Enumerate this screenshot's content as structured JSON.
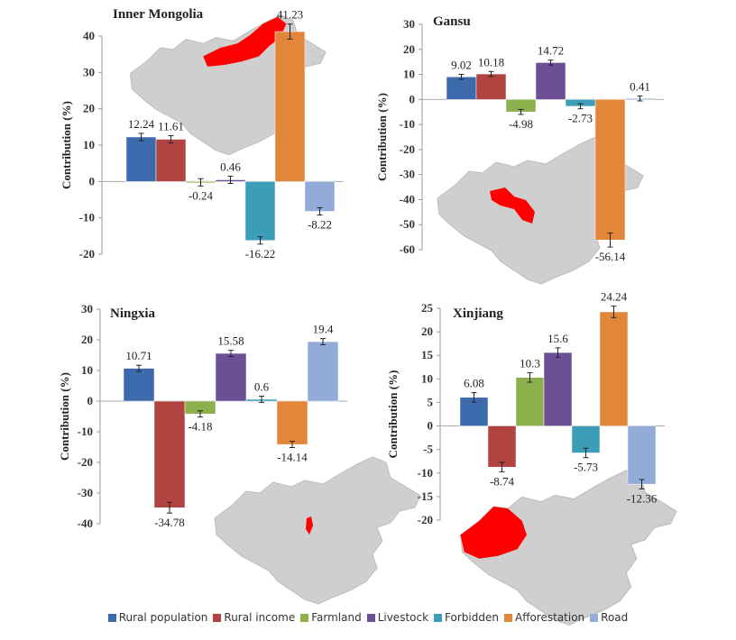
{
  "chart_data": [
    {
      "type": "bar",
      "title": "Inner Mongolia",
      "ylabel": "Contribution (%)",
      "ylim": [
        -20,
        45
      ],
      "yticks": [
        -20,
        -10,
        0,
        10,
        20,
        30,
        40
      ],
      "categories": [
        "Rural population",
        "Rural income",
        "Farmland",
        "Livestock",
        "Forbidden",
        "Afforestation",
        "Road"
      ],
      "values": [
        12.24,
        11.61,
        -0.24,
        0.46,
        -16.22,
        41.23,
        -8.22
      ],
      "labels": [
        "12.24",
        "11.61",
        "-0.24",
        "0.46",
        "-16.22",
        "41.23",
        "-8.22"
      ]
    },
    {
      "type": "bar",
      "title": "Gansu",
      "ylabel": "Contribution (%)",
      "ylim": [
        -60,
        30
      ],
      "yticks": [
        -60,
        -50,
        -40,
        -30,
        -20,
        -10,
        0,
        10,
        20,
        30
      ],
      "categories": [
        "Rural population",
        "Rural income",
        "Farmland",
        "Livestock",
        "Forbidden",
        "Afforestation",
        "Road"
      ],
      "values": [
        9.02,
        10.18,
        -4.98,
        14.72,
        -2.73,
        -56.14,
        0.41
      ],
      "labels": [
        "9.02",
        "10.18",
        "-4.98",
        "14.72",
        "-2.73",
        "-56.14",
        "0.41"
      ]
    },
    {
      "type": "bar",
      "title": "Ningxia",
      "ylabel": "Contribution (%)",
      "ylim": [
        -40,
        30
      ],
      "yticks": [
        -40,
        -30,
        -20,
        -10,
        0,
        10,
        20,
        30
      ],
      "categories": [
        "Rural population",
        "Rural income",
        "Farmland",
        "Livestock",
        "Forbidden",
        "Afforestation",
        "Road"
      ],
      "values": [
        10.71,
        -34.78,
        -4.18,
        15.58,
        0.6,
        -14.14,
        19.4
      ],
      "labels": [
        "10.71",
        "-34.78",
        "-4.18",
        "15.58",
        "0.6",
        "-14.14",
        "19.4"
      ]
    },
    {
      "type": "bar",
      "title": "Xinjiang",
      "ylabel": "Contribution (%)",
      "ylim": [
        -20,
        25
      ],
      "yticks": [
        -20,
        -15,
        -10,
        -5,
        0,
        5,
        10,
        15,
        20,
        25
      ],
      "categories": [
        "Rural population",
        "Rural income",
        "Farmland",
        "Livestock",
        "Forbidden",
        "Afforestation",
        "Road"
      ],
      "values": [
        6.08,
        -8.74,
        10.3,
        15.6,
        -5.73,
        24.24,
        -12.36
      ],
      "labels": [
        "6.08",
        "-8.74",
        "10.3",
        "15.6",
        "-5.73",
        "24.24",
        "-12.36"
      ]
    }
  ],
  "legend": {
    "placement": "bottom",
    "items": [
      {
        "label": "Rural population",
        "color": "#3d6aad"
      },
      {
        "label": "Rural income",
        "color": "#b14341"
      },
      {
        "label": "Farmland",
        "color": "#8cb04b"
      },
      {
        "label": "Livestock",
        "color": "#6d4f96"
      },
      {
        "label": "Forbidden",
        "color": "#3b9db7"
      },
      {
        "label": "Afforestation",
        "color": "#e2873a"
      },
      {
        "label": "Road",
        "color": "#92abd8"
      }
    ]
  },
  "map_highlight_color": "#ff0000",
  "map_base_color": "#cfcfcf"
}
